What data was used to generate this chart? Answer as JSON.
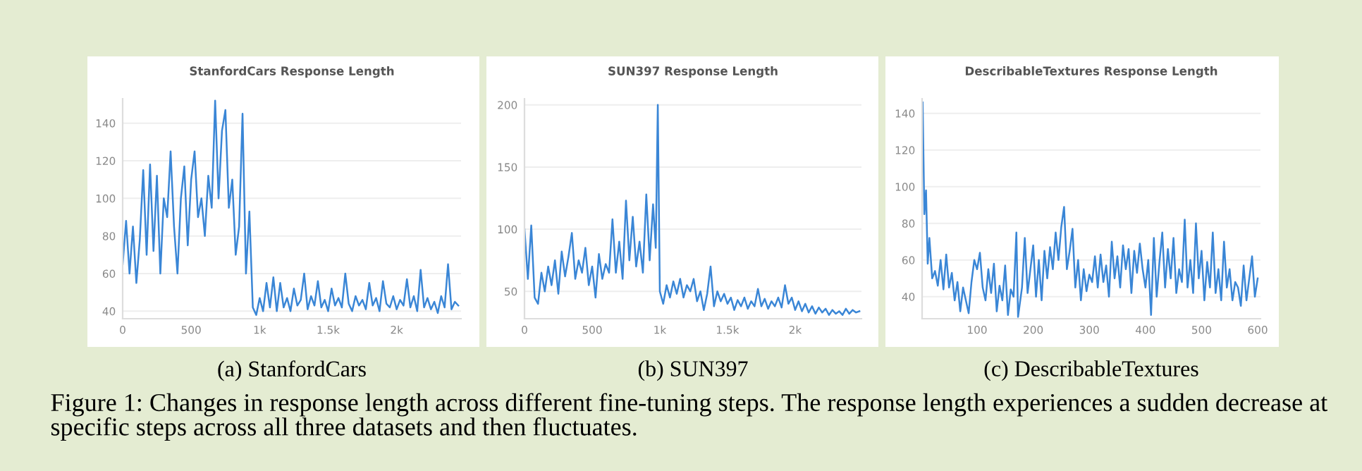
{
  "chart_data": [
    {
      "type": "line",
      "title": "StanfordCars Response Length",
      "xlabel": "(a) StanfordCars",
      "grid": "y",
      "marker": "none",
      "line_style": "solid",
      "annotations": [
        "Figure 1: Changes in response length across different fine-tuning steps. The response length experiences a sudden decrease at specific steps across all three datasets and then fluctuates."
      ],
      "xlim": [
        0,
        2470
      ],
      "xticks": [
        0,
        500,
        {
          "value": 1000,
          "label": "1k"
        },
        {
          "value": 1500,
          "label": "1.5k"
        },
        {
          "value": 2000,
          "label": "2k"
        }
      ],
      "ylim": [
        36,
        153
      ],
      "yticks": [
        40,
        60,
        80,
        100,
        120,
        140
      ],
      "x": [
        0,
        25,
        50,
        75,
        100,
        125,
        150,
        175,
        200,
        225,
        250,
        275,
        300,
        325,
        350,
        375,
        400,
        425,
        450,
        475,
        500,
        525,
        550,
        575,
        600,
        625,
        650,
        675,
        700,
        725,
        750,
        775,
        800,
        825,
        850,
        875,
        900,
        925,
        950,
        975,
        1000,
        1025,
        1050,
        1075,
        1100,
        1125,
        1150,
        1175,
        1200,
        1225,
        1250,
        1275,
        1300,
        1325,
        1350,
        1375,
        1400,
        1425,
        1450,
        1475,
        1500,
        1525,
        1550,
        1575,
        1600,
        1625,
        1650,
        1675,
        1700,
        1725,
        1750,
        1775,
        1800,
        1825,
        1850,
        1875,
        1900,
        1925,
        1950,
        1975,
        2000,
        2025,
        2050,
        2075,
        2100,
        2125,
        2150,
        2175,
        2200,
        2225,
        2250,
        2275,
        2300,
        2325,
        2350,
        2375,
        2400,
        2425,
        2450
      ],
      "series": [
        {
          "color": "#3a86d6",
          "values": [
            65,
            88,
            60,
            85,
            55,
            78,
            115,
            70,
            118,
            72,
            112,
            60,
            100,
            90,
            125,
            85,
            60,
            100,
            117,
            75,
            110,
            125,
            90,
            100,
            80,
            112,
            95,
            152,
            100,
            136,
            147,
            95,
            110,
            70,
            85,
            145,
            60,
            93,
            42,
            38,
            47,
            40,
            55,
            42,
            58,
            40,
            55,
            42,
            47,
            40,
            52,
            43,
            46,
            60,
            41,
            48,
            43,
            56,
            42,
            46,
            40,
            52,
            43,
            47,
            42,
            60,
            44,
            40,
            48,
            43,
            46,
            41,
            55,
            43,
            47,
            40,
            56,
            44,
            42,
            48,
            41,
            46,
            43,
            57,
            42,
            48,
            40,
            62,
            42,
            47,
            41,
            45,
            39,
            48,
            42,
            65,
            41,
            45,
            43
          ]
        }
      ]
    },
    {
      "type": "line",
      "title": "SUN397 Response Length",
      "xlabel": "(b) SUN397",
      "grid": "y",
      "marker": "none",
      "line_style": "solid",
      "xlim": [
        0,
        2490
      ],
      "xticks": [
        0,
        500,
        {
          "value": 1000,
          "label": "1k"
        },
        {
          "value": 1500,
          "label": "1.5k"
        },
        {
          "value": 2000,
          "label": "2k"
        }
      ],
      "ylim": [
        28,
        205
      ],
      "yticks": [
        50,
        100,
        150,
        200
      ],
      "x": [
        0,
        25,
        50,
        75,
        100,
        125,
        150,
        175,
        200,
        225,
        250,
        275,
        300,
        325,
        350,
        375,
        400,
        425,
        450,
        475,
        500,
        525,
        550,
        575,
        600,
        625,
        650,
        675,
        700,
        725,
        750,
        775,
        800,
        825,
        850,
        875,
        900,
        925,
        950,
        970,
        985,
        1000,
        1025,
        1050,
        1075,
        1100,
        1125,
        1150,
        1175,
        1200,
        1225,
        1250,
        1275,
        1300,
        1325,
        1350,
        1375,
        1400,
        1425,
        1450,
        1475,
        1500,
        1525,
        1550,
        1575,
        1600,
        1625,
        1650,
        1675,
        1700,
        1725,
        1750,
        1775,
        1800,
        1825,
        1850,
        1875,
        1900,
        1925,
        1950,
        1975,
        2000,
        2025,
        2050,
        2075,
        2100,
        2125,
        2150,
        2175,
        2200,
        2225,
        2250,
        2275,
        2300,
        2325,
        2350,
        2375,
        2400,
        2425,
        2450,
        2475
      ],
      "series": [
        {
          "color": "#3a86d6",
          "values": [
            100,
            60,
            103,
            45,
            40,
            65,
            50,
            70,
            55,
            75,
            48,
            82,
            62,
            78,
            97,
            60,
            75,
            65,
            85,
            55,
            70,
            45,
            80,
            60,
            72,
            65,
            108,
            65,
            90,
            60,
            123,
            75,
            110,
            70,
            90,
            65,
            128,
            75,
            120,
            85,
            200,
            50,
            40,
            55,
            45,
            58,
            48,
            60,
            45,
            55,
            50,
            60,
            42,
            50,
            35,
            48,
            70,
            38,
            50,
            42,
            48,
            40,
            45,
            35,
            43,
            38,
            45,
            36,
            42,
            38,
            52,
            38,
            44,
            36,
            42,
            38,
            45,
            37,
            55,
            40,
            45,
            35,
            42,
            34,
            40,
            33,
            38,
            32,
            37,
            33,
            36,
            31,
            35,
            32,
            34,
            31,
            36,
            32,
            35,
            33,
            34
          ]
        }
      ]
    },
    {
      "type": "line",
      "title": "DescribableTextures Response Length",
      "xlabel": "(c) DescribableTextures",
      "grid": "y",
      "marker": "none",
      "line_style": "solid",
      "xlim": [
        2,
        605
      ],
      "xticks": [
        100,
        200,
        300,
        400,
        500,
        600
      ],
      "ylim": [
        28,
        148
      ],
      "yticks": [
        40,
        60,
        80,
        100,
        120,
        140
      ],
      "x": [
        3,
        6,
        9,
        12,
        15,
        20,
        25,
        30,
        35,
        40,
        45,
        50,
        55,
        60,
        65,
        70,
        75,
        80,
        85,
        90,
        95,
        100,
        105,
        110,
        115,
        120,
        125,
        130,
        135,
        140,
        145,
        150,
        155,
        160,
        165,
        170,
        173,
        180,
        185,
        190,
        195,
        200,
        205,
        210,
        215,
        220,
        225,
        230,
        235,
        240,
        245,
        250,
        255,
        260,
        265,
        270,
        275,
        280,
        285,
        290,
        295,
        300,
        305,
        310,
        315,
        320,
        325,
        330,
        335,
        340,
        345,
        350,
        355,
        360,
        365,
        370,
        375,
        380,
        385,
        390,
        395,
        400,
        405,
        410,
        415,
        420,
        425,
        430,
        435,
        440,
        445,
        450,
        455,
        460,
        465,
        470,
        475,
        480,
        485,
        490,
        495,
        500,
        505,
        510,
        515,
        520,
        525,
        530,
        535,
        540,
        545,
        550,
        555,
        560,
        565,
        570,
        575,
        580,
        585,
        590,
        595,
        600
      ],
      "series": [
        {
          "color": "#3a86d6",
          "values": [
            146,
            85,
            98,
            58,
            72,
            50,
            54,
            46,
            60,
            44,
            63,
            45,
            53,
            38,
            48,
            32,
            45,
            38,
            31,
            48,
            60,
            55,
            64,
            45,
            38,
            55,
            42,
            58,
            32,
            46,
            38,
            57,
            30,
            44,
            40,
            75,
            29,
            45,
            72,
            42,
            55,
            68,
            40,
            60,
            38,
            65,
            50,
            67,
            55,
            75,
            60,
            78,
            89,
            55,
            65,
            77,
            45,
            60,
            38,
            55,
            43,
            52,
            48,
            62,
            45,
            63,
            48,
            57,
            40,
            70,
            50,
            62,
            45,
            68,
            55,
            66,
            42,
            65,
            53,
            69,
            55,
            45,
            60,
            30,
            72,
            40,
            59,
            75,
            45,
            66,
            50,
            72,
            42,
            55,
            48,
            82,
            45,
            60,
            42,
            80,
            50,
            65,
            38,
            59,
            45,
            75,
            42,
            55,
            38,
            70,
            45,
            55,
            38,
            48,
            45,
            35,
            57,
            38,
            50,
            62,
            40,
            50
          ]
        }
      ]
    }
  ]
}
